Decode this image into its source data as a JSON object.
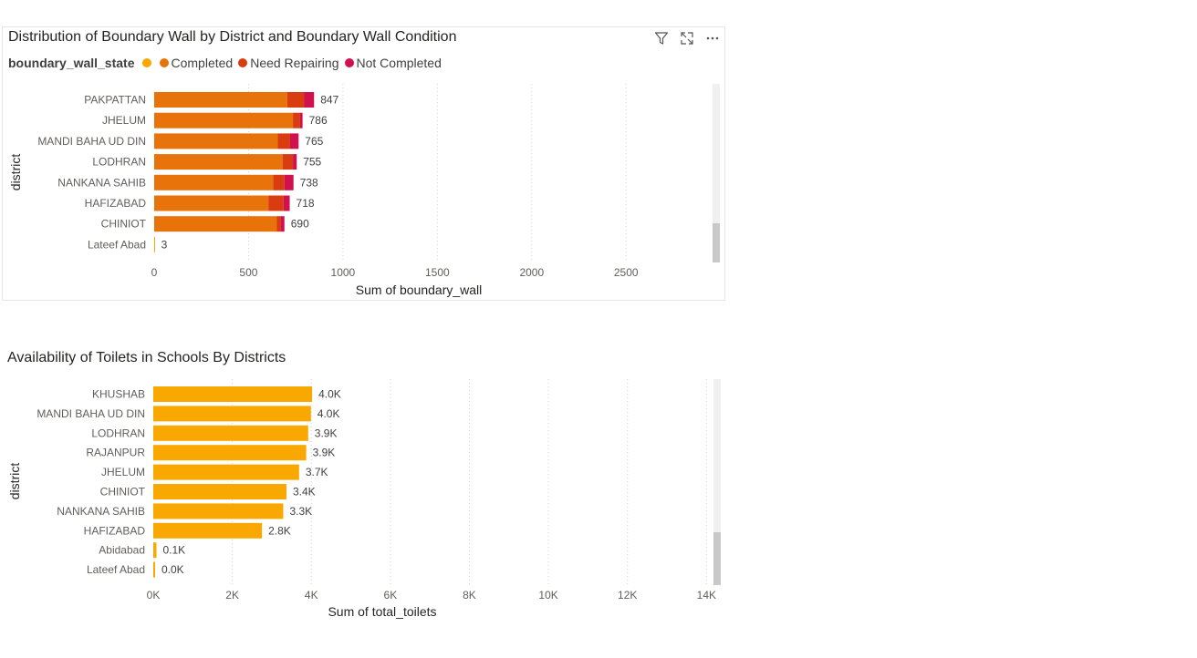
{
  "chart_data": [
    {
      "type": "bar",
      "orientation": "horizontal",
      "stacked": true,
      "title": "Distribution of Boundary Wall by District and Boundary Wall Condition",
      "legend_title": "boundary_wall_state",
      "xlabel": "Sum of boundary_wall",
      "ylabel": "district",
      "xlim": [
        0,
        2900
      ],
      "xticks": [
        0,
        500,
        1000,
        1500,
        2000,
        2500
      ],
      "xtick_labels": [
        "0",
        "500",
        "1000",
        "1500",
        "2000",
        "2500"
      ],
      "grid": true,
      "legend_position": "top-left",
      "categories": [
        "PAKPATTAN",
        "JHELUM",
        "MANDI BAHA UD DIN",
        "LODHRAN",
        "NANKANA SAHIB",
        "HAFIZABAD",
        "CHINIOT",
        "Lateef Abad"
      ],
      "series": [
        {
          "name": "",
          "color": "#F8A800",
          "values": [
            0,
            0,
            0,
            0,
            0,
            0,
            0,
            3
          ]
        },
        {
          "name": "Completed",
          "color": "#E8730A",
          "values": [
            705,
            735,
            655,
            680,
            630,
            605,
            650,
            0
          ]
        },
        {
          "name": "Need Repairing",
          "color": "#D83C10",
          "values": [
            90,
            38,
            65,
            55,
            60,
            80,
            20,
            0
          ]
        },
        {
          "name": "Not Completed",
          "color": "#D0114E",
          "values": [
            52,
            13,
            45,
            20,
            48,
            33,
            20,
            0
          ]
        }
      ],
      "totals": [
        847,
        786,
        765,
        755,
        738,
        718,
        690,
        3
      ],
      "total_labels": [
        "847",
        "786",
        "765",
        "755",
        "738",
        "718",
        "690",
        "3"
      ]
    },
    {
      "type": "bar",
      "orientation": "horizontal",
      "title": "Availability of Toilets in Schools By Districts",
      "xlabel": "Sum of total_toilets",
      "ylabel": "district",
      "xlim": [
        0,
        14500
      ],
      "xticks": [
        0,
        2000,
        4000,
        6000,
        8000,
        10000,
        12000,
        14000
      ],
      "xtick_labels": [
        "0K",
        "2K",
        "4K",
        "6K",
        "8K",
        "10K",
        "12K",
        "14K"
      ],
      "grid": true,
      "color": "#F8A800",
      "categories": [
        "KHUSHAB",
        "MANDI BAHA UD DIN",
        "LODHRAN",
        "RAJANPUR",
        "JHELUM",
        "CHINIOT",
        "NANKANA SAHIB",
        "HAFIZABAD",
        "Abidabad",
        "Lateef Abad"
      ],
      "values": [
        4020,
        3990,
        3920,
        3870,
        3690,
        3370,
        3290,
        2750,
        80,
        10
      ],
      "value_labels": [
        "4.0K",
        "4.0K",
        "3.9K",
        "3.9K",
        "3.7K",
        "3.4K",
        "3.3K",
        "2.8K",
        "0.1K",
        "0.0K"
      ]
    }
  ],
  "icons": {
    "filter": "filter-icon",
    "focus": "focus-mode-icon",
    "more": "more-options-icon"
  }
}
